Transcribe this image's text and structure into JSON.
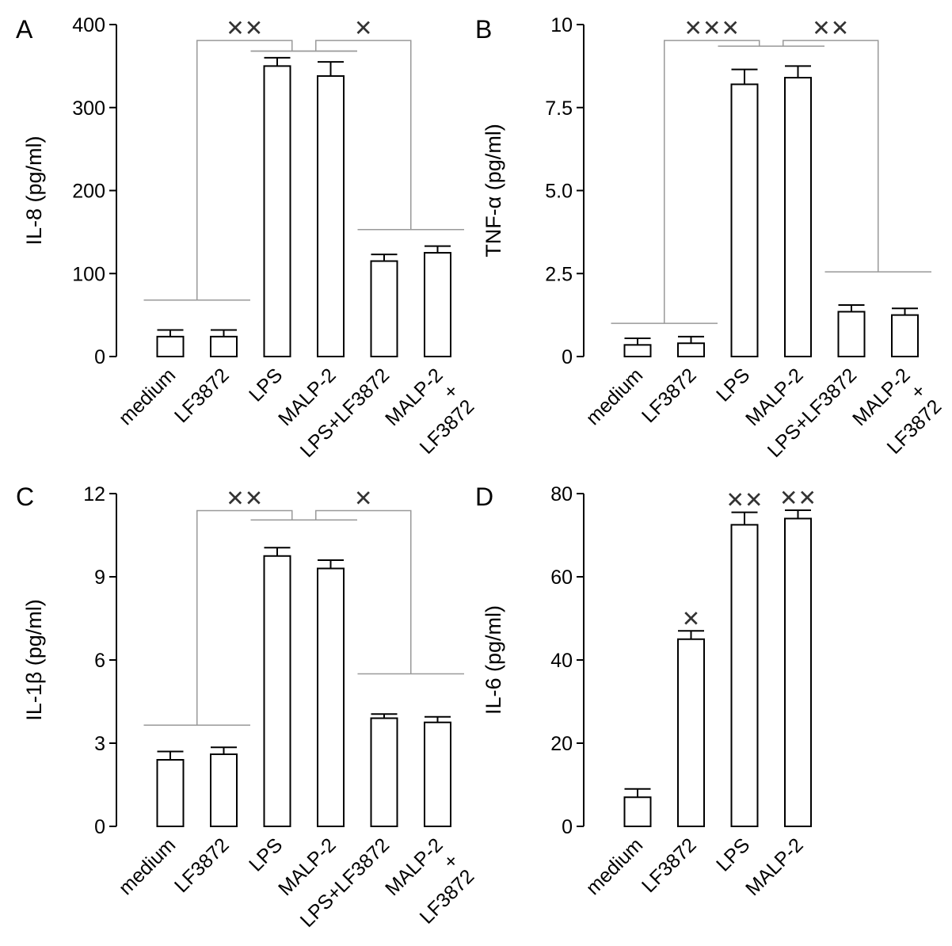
{
  "chart_data": [
    {
      "panel": "A",
      "type": "bar",
      "ylabel": "IL-8 (pg/ml)",
      "ylim": [
        0,
        400
      ],
      "yticks": [
        0,
        100,
        200,
        300,
        400
      ],
      "categories": [
        [
          "medium"
        ],
        [
          "LF3872"
        ],
        [
          "LPS"
        ],
        [
          "MALP-2"
        ],
        [
          "LPS+LF3872"
        ],
        [
          "MALP-2",
          "+",
          "LF3872"
        ]
      ],
      "values": [
        24,
        24,
        350,
        338,
        115,
        125
      ],
      "errors": [
        8,
        8,
        10,
        17,
        8,
        8
      ],
      "brackets": [
        {
          "left": [
            0,
            1
          ],
          "right": [
            2,
            3
          ],
          "left_level": 68,
          "right_level": 368,
          "top": 398,
          "label": "✕✕"
        },
        {
          "left": [
            2,
            3
          ],
          "right": [
            4,
            5
          ],
          "left_level": 368,
          "right_level": 153,
          "top": 398,
          "label": "✕"
        }
      ],
      "bar_marks": []
    },
    {
      "panel": "B",
      "type": "bar",
      "ylabel": "TNF-α (pg/ml)",
      "ylim": [
        0,
        10
      ],
      "yticks": [
        0,
        2.5,
        5.0,
        7.5,
        10
      ],
      "ytick_labels": [
        "0",
        "2.5",
        "5.0",
        "7.5",
        "10"
      ],
      "categories": [
        [
          "medium"
        ],
        [
          "LF3872"
        ],
        [
          "LPS"
        ],
        [
          "MALP-2"
        ],
        [
          "LPS+LF3872"
        ],
        [
          "MALP-2",
          "+",
          "LF3872"
        ]
      ],
      "values": [
        0.35,
        0.4,
        8.2,
        8.4,
        1.35,
        1.25
      ],
      "errors": [
        0.2,
        0.2,
        0.45,
        0.35,
        0.2,
        0.2
      ],
      "brackets": [
        {
          "left": [
            0,
            1
          ],
          "right": [
            2,
            3
          ],
          "left_level": 1.0,
          "right_level": 9.35,
          "top": 9.95,
          "label": "✕✕✕"
        },
        {
          "left": [
            2,
            3
          ],
          "right": [
            4,
            5
          ],
          "left_level": 9.35,
          "right_level": 2.55,
          "top": 9.95,
          "label": "✕✕"
        }
      ],
      "bar_marks": []
    },
    {
      "panel": "C",
      "type": "bar",
      "ylabel": "IL-1β (pg/ml)",
      "ylim": [
        0,
        12
      ],
      "yticks": [
        0,
        3,
        6,
        9,
        12
      ],
      "categories": [
        [
          "medium"
        ],
        [
          "LF3872"
        ],
        [
          "LPS"
        ],
        [
          "MALP-2"
        ],
        [
          "LPS+LF3872"
        ],
        [
          "MALP-2",
          "+",
          "LF3872"
        ]
      ],
      "values": [
        2.4,
        2.6,
        9.75,
        9.3,
        3.9,
        3.75
      ],
      "errors": [
        0.3,
        0.25,
        0.3,
        0.3,
        0.15,
        0.2
      ],
      "brackets": [
        {
          "left": [
            0,
            1
          ],
          "right": [
            2,
            3
          ],
          "left_level": 3.65,
          "right_level": 11.05,
          "top": 11.9,
          "label": "✕✕"
        },
        {
          "left": [
            2,
            3
          ],
          "right": [
            4,
            5
          ],
          "left_level": 11.05,
          "right_level": 5.5,
          "top": 11.9,
          "label": "✕"
        }
      ],
      "bar_marks": []
    },
    {
      "panel": "D",
      "type": "bar",
      "ylabel": "IL-6 (pg/ml)",
      "ylim": [
        0,
        80
      ],
      "yticks": [
        0,
        20,
        40,
        60,
        80
      ],
      "categories": [
        [
          "medium"
        ],
        [
          "LF3872"
        ],
        [
          "LPS"
        ],
        [
          "MALP-2"
        ]
      ],
      "values": [
        7,
        45,
        72.5,
        74
      ],
      "errors": [
        2,
        2,
        3,
        2
      ],
      "brackets": [],
      "bar_marks": [
        "",
        "✕",
        "✕✕",
        "✕✕"
      ]
    }
  ]
}
